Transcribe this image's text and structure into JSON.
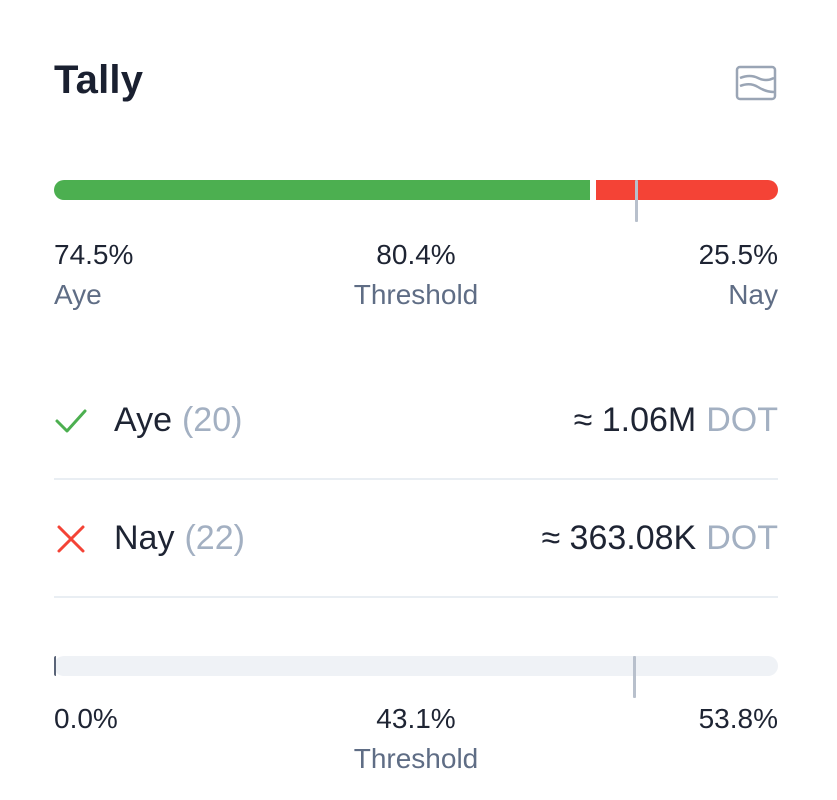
{
  "title": "Tally",
  "icons": {
    "chart_toggle": "chart-icon",
    "aye": "checkmark-icon",
    "nay": "cross-icon"
  },
  "colors": {
    "aye": "#4caf50",
    "nay": "#f44336",
    "threshold": "#b8c0cc",
    "muted": "#a3b0c2"
  },
  "approval": {
    "aye_percent": "74.5%",
    "aye_label": "Aye",
    "threshold_percent": "80.4%",
    "threshold_label": "Threshold",
    "nay_percent": "25.5%",
    "nay_label": "Nay",
    "aye_fraction": 0.745,
    "threshold_fraction": 0.804
  },
  "votes": {
    "aye": {
      "label": "Aye",
      "count": "(20)",
      "amount": "≈ 1.06M",
      "unit": "DOT"
    },
    "nay": {
      "label": "Nay",
      "count": "(22)",
      "amount": "≈ 363.08K",
      "unit": "DOT"
    }
  },
  "support": {
    "current_percent": "0.0%",
    "threshold_percent": "43.1%",
    "threshold_label": "Threshold",
    "max_percent": "53.8%",
    "current_fraction": 0.002,
    "threshold_fraction": 0.801
  }
}
